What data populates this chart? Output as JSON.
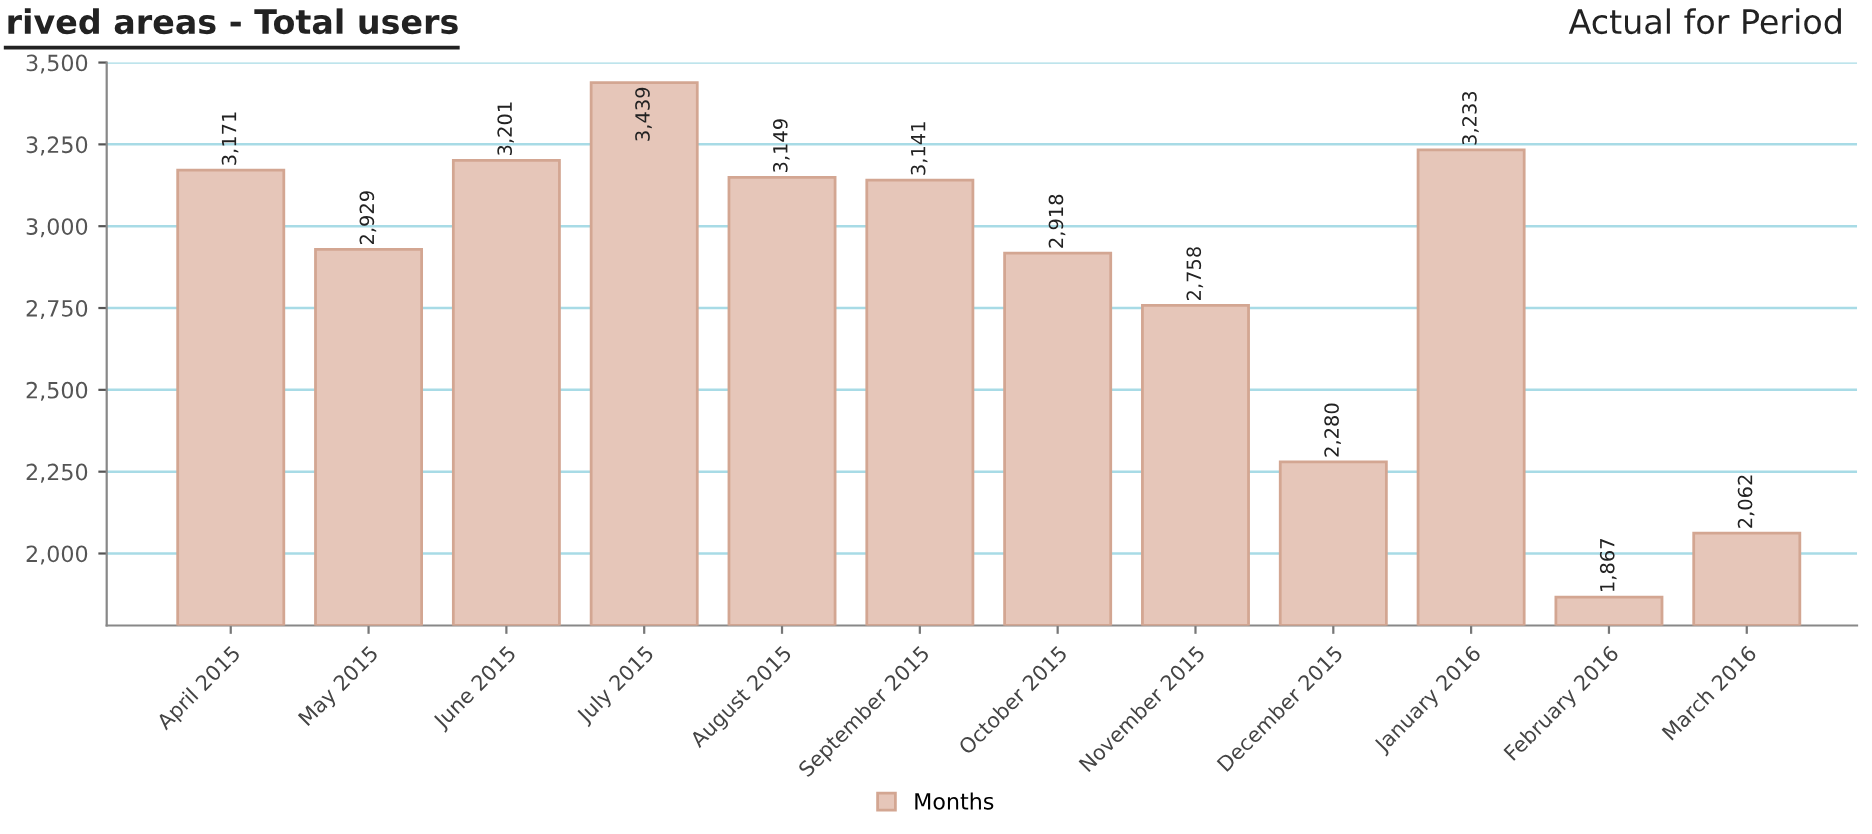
{
  "chart_data": {
    "type": "bar",
    "title": "rived areas - Total users",
    "subtitle": "Actual for Period",
    "categories": [
      "April 2015",
      "May 2015",
      "June 2015",
      "July 2015",
      "August 2015",
      "September 2015",
      "October 2015",
      "November 2015",
      "December 2015",
      "January 2016",
      "February 2016",
      "March 2016"
    ],
    "series": [
      {
        "name": "Months",
        "color": "#e6c6b9",
        "values": [
          3171,
          2929,
          3201,
          3439,
          3149,
          3141,
          2918,
          2758,
          2280,
          3233,
          1867,
          2062
        ],
        "value_labels": [
          "3,171",
          "2,929",
          "3,201",
          "3,439",
          "3,149",
          "3,141",
          "2,918",
          "2,758",
          "2,280",
          "3,233",
          "1,867",
          "2,062"
        ]
      }
    ],
    "ylim": [
      1780,
      3500
    ],
    "yticks": [
      {
        "value": 2000,
        "label": "2,000"
      },
      {
        "value": 2250,
        "label": "2,250"
      },
      {
        "value": 2500,
        "label": "2,500"
      },
      {
        "value": 2750,
        "label": "2,750"
      },
      {
        "value": 3000,
        "label": "3,000"
      },
      {
        "value": 3250,
        "label": "3,250"
      },
      {
        "value": 3500,
        "label": "3,500"
      }
    ],
    "grid": "y",
    "legend": "bottom"
  }
}
